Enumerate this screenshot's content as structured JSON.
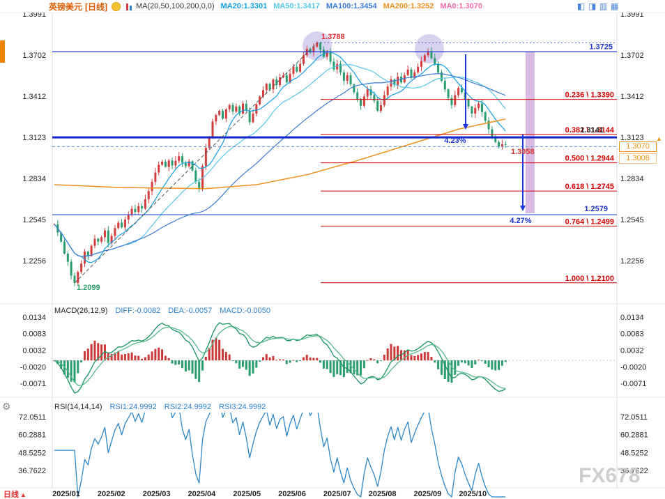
{
  "header": {
    "symbol": "英镑美元",
    "timeframe": "[日线]",
    "ma_group": "MA(20,50,100,200,0,0)",
    "ma_values": [
      {
        "label": "MA20:1.3301",
        "color": "#10a0e8"
      },
      {
        "label": "MA50:1.3417",
        "color": "#57c7e8"
      },
      {
        "label": "MA100:1.3454",
        "color": "#3b7bd8"
      },
      {
        "label": "MA200:1.3252",
        "color": "#f0901e"
      },
      {
        "label": "MA0:1.3070",
        "color": "#f06ba8"
      }
    ],
    "toolbar_icons": [
      "layout-single",
      "layout-split-2",
      "layout-split-3",
      "layout-split-4"
    ]
  },
  "main_chart": {
    "y_axis_labels": [
      "1.3991",
      "1.3702",
      "1.3412",
      "1.3123",
      "1.2834",
      "1.2545",
      "1.2256"
    ],
    "y_axis_values": [
      1.3991,
      1.3702,
      1.3412,
      1.3123,
      1.2834,
      1.2545,
      1.2256
    ],
    "fib_levels": [
      {
        "label": "0.236 \\ 1.3390",
        "value": 1.339
      },
      {
        "label": "0.382 \\ 1.3144",
        "value": 1.3144
      },
      {
        "label": "0.500 \\ 1.2944",
        "value": 1.2944
      },
      {
        "label": "0.618 \\ 1.2745",
        "value": 1.2745
      },
      {
        "label": "0.764 \\ 1.2499",
        "value": 1.2499
      },
      {
        "label": "1.000 \\ 1.2100",
        "value": 1.21
      }
    ],
    "resistance_line": {
      "label": "1.3725",
      "value": 1.3725
    },
    "support_line": {
      "label": "1.2579",
      "value": 1.2579
    },
    "key_line_value": 1.3123,
    "dashed_level": {
      "label": "1.3058",
      "value": 1.3058
    },
    "peak_label": {
      "text": "1.3788",
      "value": 1.3788
    },
    "low_label": {
      "text": "1.2099",
      "value": 1.2099
    },
    "drop1_label": "4.23%",
    "drop2_label": "4.27%",
    "overlap_label": "1.3141",
    "price_badge": "1.3070",
    "secondary_badge": "1.3008"
  },
  "macd_panel": {
    "title": "MACD(26,12,9)",
    "values": [
      {
        "label": "DIFF:-0.0082"
      },
      {
        "label": "DEA:-0.0057"
      },
      {
        "label": "MACD:-0.0050"
      }
    ],
    "y_axis_labels": [
      "0.0134",
      "0.0083",
      "0.0032",
      "-0.0020",
      "-0.0071"
    ],
    "y_axis_values": [
      0.0134,
      0.0083,
      0.0032,
      -0.002,
      -0.0071
    ]
  },
  "rsi_panel": {
    "title": "RSI(14,14,14)",
    "values": [
      {
        "label": "RSI1:24.9992"
      },
      {
        "label": "RSI2:24.9992"
      },
      {
        "label": "RSI3:24.9992"
      }
    ],
    "y_axis_labels": [
      "72.0511",
      "60.2881",
      "48.5252",
      "36.7622"
    ],
    "y_axis_values": [
      72.0511,
      60.2881,
      48.5252,
      36.7622
    ]
  },
  "x_axis": [
    "2025/01",
    "2025/02",
    "2025/03",
    "2025/04",
    "2025/05",
    "2025/06",
    "2025/07",
    "2025/08",
    "2025/09",
    "2025/10"
  ],
  "bottom_tab": "日线",
  "watermark": "FX678",
  "chart_data": {
    "type": "candlestick",
    "title": "英镑美元 [日线] GBP/USD daily",
    "x_months": [
      "2025/01",
      "2025/02",
      "2025/03",
      "2025/04",
      "2025/05",
      "2025/06",
      "2025/07",
      "2025/08",
      "2025/09",
      "2025/10"
    ],
    "sampling": "approx every 2 trading days, Jan 2025 - late Oct 2025",
    "closes": [
      1.2512,
      1.2453,
      1.2389,
      1.2305,
      1.2248,
      1.215,
      1.2099,
      1.2176,
      1.2235,
      1.232,
      1.2289,
      1.236,
      1.241,
      1.2389,
      1.2421,
      1.2468,
      1.238,
      1.243,
      1.2485,
      1.2523,
      1.249,
      1.2545,
      1.258,
      1.262,
      1.2598,
      1.264,
      1.2622,
      1.2688,
      1.2745,
      1.281,
      1.2876,
      1.293,
      1.2952,
      1.2915,
      1.296,
      1.2925,
      1.2958,
      1.299,
      1.2945,
      1.292,
      1.2955,
      1.289,
      1.281,
      1.276,
      1.2921,
      1.305,
      1.312,
      1.3235,
      1.328,
      1.331,
      1.3255,
      1.332,
      1.335,
      1.3305,
      1.334,
      1.329,
      1.336,
      1.331,
      1.323,
      1.329,
      1.3355,
      1.341,
      1.3455,
      1.35,
      1.346,
      1.353,
      1.349,
      1.3545,
      1.356,
      1.351,
      1.357,
      1.362,
      1.3585,
      1.364,
      1.37,
      1.3745,
      1.372,
      1.376,
      1.3788,
      1.374,
      1.369,
      1.372,
      1.3655,
      1.36,
      1.364,
      1.358,
      1.352,
      1.356,
      1.3495,
      1.344,
      1.339,
      1.3345,
      1.341,
      1.346,
      1.342,
      1.338,
      1.331,
      1.335,
      1.342,
      1.348,
      1.353,
      1.349,
      1.355,
      1.351,
      1.356,
      1.36,
      1.354,
      1.358,
      1.362,
      1.366,
      1.37,
      1.3725,
      1.368,
      1.364,
      1.358,
      1.352,
      1.346,
      1.34,
      1.335,
      1.342,
      1.347,
      1.344,
      1.339,
      1.334,
      1.329,
      1.333,
      1.336,
      1.33,
      1.324,
      1.318,
      1.313,
      1.309,
      1.3058,
      1.3075,
      1.307
    ],
    "high": 1.3788,
    "low": 1.2099,
    "last_price": 1.307,
    "last_close_level": 1.3058,
    "ylim": [
      1.2099,
      1.3991
    ],
    "fib_retracement": {
      "from": 1.3788,
      "to": 1.21,
      "levels": {
        "0.236": 1.339,
        "0.382": 1.3144,
        "0.500": 1.2944,
        "0.618": 1.2745,
        "0.764": 1.2499,
        "1.000": 1.21
      }
    },
    "horizontal_lines": [
      1.3725,
      1.3123,
      1.2579
    ],
    "drops": [
      {
        "pct": 4.23
      },
      {
        "pct": 4.27
      }
    ],
    "ma_snapshot": {
      "MA20": 1.3301,
      "MA50": 1.3417,
      "MA100": 1.3454,
      "MA200": 1.3252,
      "MA0": 1.307
    },
    "macd": {
      "type": "bar+line",
      "params": [
        26,
        12,
        9
      ],
      "diff": -0.0082,
      "dea": -0.0057,
      "macd": -0.005,
      "ylim": [
        -0.0071,
        0.0134
      ]
    },
    "rsi": {
      "type": "line",
      "params": [
        14,
        14,
        14
      ],
      "rsi1": 24.9992,
      "rsi2": 24.9992,
      "rsi3": 24.9992,
      "axis": [
        36.7622,
        48.5252,
        60.2881,
        72.0511
      ]
    }
  }
}
